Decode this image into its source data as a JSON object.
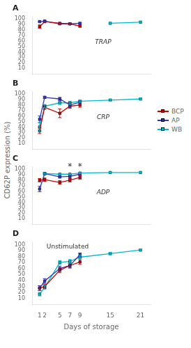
{
  "chart_data": [
    {
      "type": "line",
      "title": "A",
      "subtitle": "TRAP",
      "ylabel": "CD62P expression (%)",
      "x": [
        1,
        2,
        5,
        7,
        9,
        15,
        21
      ],
      "xlim": [
        -0.5,
        23
      ],
      "xticks": [
        1,
        2,
        5,
        7,
        9,
        15,
        21
      ],
      "ylim": [
        0,
        105
      ],
      "yticks": [
        10,
        20,
        30,
        40,
        50,
        60,
        70,
        80,
        90,
        100
      ],
      "grid": false,
      "tick_labels": "y",
      "series": [
        {
          "name": "BCP",
          "color": "#cc0000",
          "marker": "square",
          "values": [
            86,
            95,
            92,
            91,
            87,
            null,
            null
          ],
          "errors": [
            3,
            1,
            1,
            1.5,
            2,
            null,
            null
          ]
        },
        {
          "name": "AP",
          "color": "#3333bb",
          "marker": "square",
          "values": [
            95,
            96,
            91,
            91,
            92,
            null,
            null
          ],
          "errors": [
            1,
            0.5,
            1.5,
            1.5,
            1,
            null,
            null
          ]
        },
        {
          "name": "WB",
          "color": "#00bbcc",
          "marker": "square",
          "values": [
            null,
            null,
            null,
            null,
            null,
            92,
            94
          ],
          "errors": [
            null,
            null,
            null,
            null,
            null,
            1,
            1
          ]
        }
      ]
    },
    {
      "type": "line",
      "title": "B",
      "subtitle": "CRP",
      "x": [
        1,
        2,
        5,
        7,
        9,
        15,
        21
      ],
      "xlim": [
        -0.5,
        23
      ],
      "xticks": [
        1,
        2,
        5,
        7,
        9,
        15,
        21
      ],
      "ylim": [
        0,
        105
      ],
      "yticks": [
        10,
        20,
        30,
        40,
        50,
        60,
        70,
        80,
        90,
        100
      ],
      "grid": false,
      "tick_labels": "y",
      "legend": "right",
      "series": [
        {
          "name": "BCP",
          "color": "#cc0000",
          "marker": "square",
          "values": [
            33,
            76,
            65,
            78,
            80,
            null,
            null
          ],
          "errors": [
            5,
            4,
            8,
            4,
            4,
            null,
            null
          ]
        },
        {
          "name": "AP",
          "color": "#3333bb",
          "marker": "square",
          "values": [
            54,
            94,
            91,
            80,
            85,
            null,
            null
          ],
          "errors": [
            6,
            2,
            3,
            4,
            3,
            null,
            null
          ]
        },
        {
          "name": "WB",
          "color": "#00bbcc",
          "marker": "square",
          "values": [
            40,
            78,
            84,
            84,
            87,
            89,
            91
          ],
          "errors": [
            8,
            3,
            3,
            3,
            2,
            2,
            2
          ]
        }
      ]
    },
    {
      "type": "line",
      "title": "C",
      "subtitle": "ADP",
      "x": [
        1,
        2,
        5,
        7,
        9,
        15,
        21
      ],
      "xlim": [
        -0.5,
        23
      ],
      "xticks": [
        1,
        2,
        5,
        7,
        9,
        15,
        21
      ],
      "ylim": [
        0,
        105
      ],
      "yticks": [
        10,
        20,
        30,
        40,
        50,
        60,
        70,
        80,
        90,
        100
      ],
      "grid": false,
      "tick_labels": "y",
      "annotations": [
        {
          "text": "*",
          "x": 7,
          "y": 101
        },
        {
          "text": "*",
          "x": 9,
          "y": 101
        }
      ],
      "series": [
        {
          "name": "BCP",
          "color": "#cc0000",
          "marker": "square",
          "values": [
            80,
            81,
            76,
            80,
            85,
            null,
            null
          ],
          "errors": [
            3,
            3,
            3,
            3,
            3,
            null,
            null
          ]
        },
        {
          "name": "AP",
          "color": "#3333bb",
          "marker": "square",
          "values": [
            64,
            92,
            86,
            87,
            91,
            null,
            null
          ],
          "errors": [
            5,
            2,
            2,
            3,
            2,
            null,
            null
          ]
        },
        {
          "name": "WB",
          "color": "#00bbcc",
          "marker": "square",
          "values": [
            null,
            92,
            91,
            91,
            93,
            94,
            94
          ],
          "errors": [
            null,
            1,
            1,
            1,
            1,
            1,
            1
          ]
        }
      ]
    },
    {
      "type": "line",
      "title": "D",
      "subtitle": "Unstimulated",
      "xlabel": "Days of storage",
      "x": [
        1,
        2,
        5,
        7,
        9,
        15,
        21
      ],
      "xlim": [
        -0.5,
        23
      ],
      "xticks": [
        1,
        2,
        5,
        7,
        9,
        15,
        21
      ],
      "ylim": [
        0,
        105
      ],
      "yticks": [
        10,
        20,
        30,
        40,
        50,
        60,
        70,
        80,
        90,
        100
      ],
      "grid": false,
      "series": [
        {
          "name": "BCP",
          "color": "#cc0000",
          "marker": "square",
          "values": [
            27,
            30,
            57,
            65,
            71,
            null,
            null
          ],
          "errors": [
            4,
            3,
            4,
            4,
            4,
            null,
            null
          ]
        },
        {
          "name": "AP",
          "color": "#3333bb",
          "marker": "square",
          "values": [
            27,
            39,
            60,
            65,
            83,
            null,
            null
          ],
          "errors": [
            4,
            4,
            4,
            4,
            3,
            null,
            null
          ]
        },
        {
          "name": "WB",
          "color": "#00bbcc",
          "marker": "square",
          "values": [
            17,
            28,
            70,
            72,
            79,
            85,
            91
          ],
          "errors": [
            3,
            3,
            3,
            3,
            3,
            2,
            2
          ]
        }
      ]
    }
  ]
}
